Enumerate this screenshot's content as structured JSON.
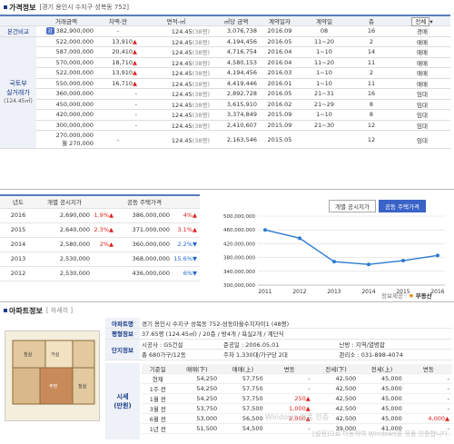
{
  "section1": {
    "title": "가격정보",
    "subtitle": "[경기 용인시 수지구 성복동 752]"
  },
  "price_table": {
    "headers": [
      "거래금액",
      "차액-만",
      "면적-㎡",
      "㎡당 금액",
      "계약일자",
      "계약일",
      "층"
    ],
    "filter_label": "전체",
    "self_row": {
      "label": "본건비교",
      "pill": "감",
      "amount": "382,900,000",
      "diff": "-",
      "area": "124.45",
      "area_unit": "(38평)",
      "per_m2": "3,076,738",
      "date": "2016.09",
      "day": "08",
      "floor": "16",
      "type": "경매"
    },
    "side_label_1": "국토부",
    "side_label_2": "실거래가",
    "side_label_3": "(124.45㎡)",
    "rows": [
      {
        "amount": "522,000,000",
        "diff": "13,910",
        "dir": "up",
        "area": "124.45",
        "au": "(38평)",
        "per": "4,194,456",
        "date": "2016.05",
        "day": "11~20",
        "floor": "2",
        "type": "매매"
      },
      {
        "amount": "587,000,000",
        "diff": "20,410",
        "dir": "up",
        "area": "124.45",
        "au": "(38평)",
        "per": "4,716,754",
        "date": "2016.04",
        "day": "1~10",
        "floor": "14",
        "type": "매매"
      },
      {
        "amount": "570,000,000",
        "diff": "18,710",
        "dir": "up",
        "area": "124.45",
        "au": "(38평)",
        "per": "4,580,153",
        "date": "2016.04",
        "day": "11~20",
        "floor": "11",
        "type": "매매"
      },
      {
        "amount": "522,000,000",
        "diff": "13,910",
        "dir": "up",
        "area": "124.45",
        "au": "(38평)",
        "per": "4,194,456",
        "date": "2016.03",
        "day": "1~10",
        "floor": "2",
        "type": "매매"
      },
      {
        "amount": "550,000,000",
        "diff": "16,710",
        "dir": "up",
        "area": "124.45",
        "au": "(38평)",
        "per": "4,419,446",
        "date": "2016.01",
        "day": "1~10",
        "floor": "11",
        "type": "매매"
      },
      {
        "amount": "360,000,000",
        "diff": "-",
        "dir": "",
        "area": "124.45",
        "au": "(38평)",
        "per": "2,892,728",
        "date": "2016.05",
        "day": "21~31",
        "floor": "16",
        "type": "임대"
      },
      {
        "amount": "450,000,000",
        "diff": "-",
        "dir": "",
        "area": "124.45",
        "au": "(38평)",
        "per": "3,615,910",
        "date": "2016.02",
        "day": "21~29",
        "floor": "8",
        "type": "임대"
      },
      {
        "amount": "420,000,000",
        "diff": "-",
        "dir": "",
        "area": "124.45",
        "au": "(38평)",
        "per": "3,374,849",
        "date": "2015.09",
        "day": "1~10",
        "floor": "8",
        "type": "임대"
      },
      {
        "amount": "300,000,000",
        "diff": "-",
        "dir": "",
        "area": "124.45",
        "au": "(38평)",
        "per": "2,410,607",
        "date": "2015.09",
        "day": "21~30",
        "floor": "12",
        "type": "임대"
      }
    ],
    "last_row": {
      "amount_l1": "270,000,000",
      "amount_l2": "월 270,000",
      "diff": "-",
      "area": "124.45",
      "au": "(38평)",
      "per": "2,163,546",
      "date": "2015.05",
      "day": "",
      "floor": "12",
      "type": "임대"
    }
  },
  "year_table": {
    "headers": [
      "년도",
      "개별 공시지가",
      "",
      "공동 주택가격",
      ""
    ],
    "rows": [
      {
        "year": "2016",
        "land": "2,690,000",
        "land_chg": "1.9%",
        "land_dir": "up",
        "house": "386,000,000",
        "house_chg": "4%",
        "house_dir": "up"
      },
      {
        "year": "2015",
        "land": "2,640,000",
        "land_chg": "2.3%",
        "land_dir": "up",
        "house": "371,000,000",
        "house_chg": "3.1%",
        "house_dir": "up"
      },
      {
        "year": "2014",
        "land": "2,580,000",
        "land_chg": "2%",
        "land_dir": "up",
        "house": "360,000,000",
        "house_chg": "2.2%",
        "house_dir": "down"
      },
      {
        "year": "2013",
        "land": "2,530,000",
        "land_chg": "",
        "land_dir": "",
        "house": "368,000,000",
        "house_chg": "15.6%",
        "house_dir": "down"
      },
      {
        "year": "2012",
        "land": "2,530,000",
        "land_chg": "",
        "land_dir": "",
        "house": "436,000,000",
        "house_chg": "6%",
        "house_dir": "down"
      }
    ]
  },
  "chart_tabs": {
    "left": "개별 공시지가",
    "right": "공동 주택가격"
  },
  "chart_data": {
    "type": "line",
    "x": [
      "2011",
      "2012",
      "2013",
      "2014",
      "2015",
      "2016"
    ],
    "series": [
      {
        "values": [
          460000000,
          436000000,
          368000000,
          360000000,
          371000000,
          386000000
        ]
      }
    ],
    "y_ticks": [
      "500,000,000",
      "460,000,000",
      "420,000,000",
      "380,000,000",
      "340,000,000",
      "300,000,000"
    ],
    "ylim": [
      300000000,
      500000000
    ],
    "color": "#2b7bd0"
  },
  "credit": {
    "label": "정보제공 :",
    "brand": "부동산"
  },
  "section3": {
    "title": "아파트정보",
    "link": "[ 자세히 ]"
  },
  "apt": {
    "name_label": "아파트명",
    "name": "경기 용인시 수지구 성복동 752-성동마을수지자이1 (48평)",
    "type_label": "평형정보",
    "type": "37.65평 (124.45㎡) / 20층 / 방4개 / 욕실2개 / 계단식",
    "complex_label": "단지정보",
    "builder": "시공사 : GS건설",
    "completion": "준공일 : 2006.05.01",
    "heat": "난방 : 지역/열병합",
    "units": "총 680가구/12동",
    "parking": "주차 1,330대/가구당 2대",
    "office": "관리소 : 031-898-4074",
    "market_label_1": "시세",
    "market_label_2": "(만원)",
    "market_headers": [
      "기준일",
      "매매(下)",
      "매매(上)",
      "변동",
      "전세(下)",
      "전세(上)",
      "변동"
    ],
    "market_rows": [
      {
        "d": "현재",
        "a": "54,250",
        "b": "57,750",
        "c": "-",
        "e": "42,500",
        "f": "45,000",
        "g": "-",
        "cd": "",
        "gd": "",
        "bold": true
      },
      {
        "d": "1주 전",
        "a": "54,250",
        "b": "57,750",
        "c": "-",
        "e": "42,500",
        "f": "45,000",
        "g": "-",
        "cd": "",
        "gd": ""
      },
      {
        "d": "1월 전",
        "a": "54,250",
        "b": "57,750",
        "c": "250",
        "e": "42,500",
        "f": "45,000",
        "g": "-",
        "cd": "up",
        "gd": ""
      },
      {
        "d": "3월 전",
        "a": "53,750",
        "b": "57,500",
        "c": "1,000",
        "e": "42,500",
        "f": "45,000",
        "g": "-",
        "cd": "up",
        "gd": ""
      },
      {
        "d": "6월 전",
        "a": "53,000",
        "b": "56,500",
        "c": "2,000",
        "e": "42,500",
        "f": "45,000",
        "g": "4,000",
        "cd": "up",
        "gd": "up"
      },
      {
        "d": "1년 전",
        "a": "51,500",
        "b": "54,500",
        "c": "-",
        "e": "39,000",
        "f": "41,000",
        "g": "-",
        "cd": "",
        "gd": ""
      }
    ]
  },
  "watermark": {
    "line1": "Windows 정품 인증",
    "line2": "[설정]으로 이동하여 Windows를 정품 인증합니다."
  },
  "plan_rooms": {
    "r1": "침실",
    "r2": "거실",
    "r3": "주방",
    "r4": "침실"
  }
}
